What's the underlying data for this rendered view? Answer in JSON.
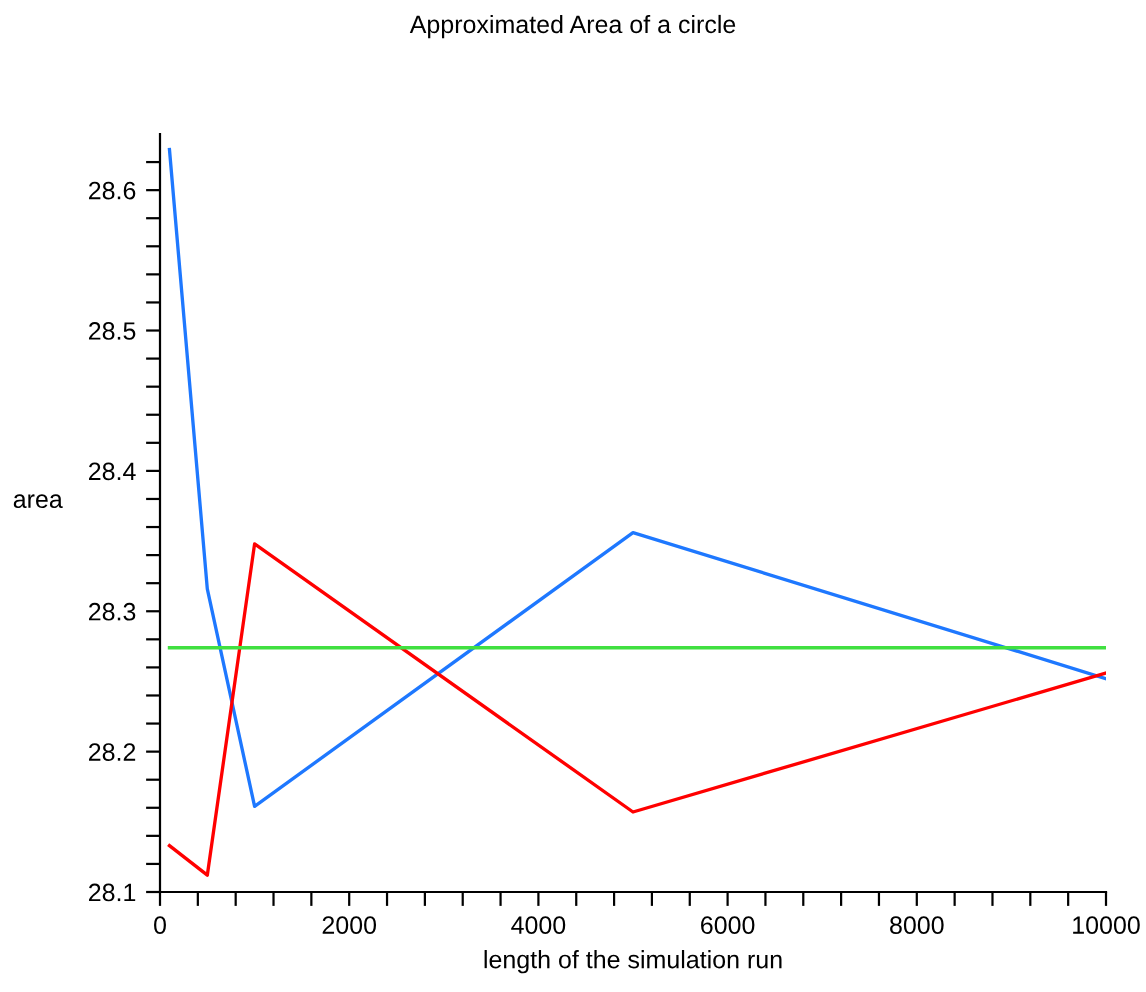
{
  "chart_data": {
    "type": "line",
    "title": "Approximated Area of a circle",
    "xlabel": "length of the simulation run",
    "ylabel": "area",
    "series": [
      {
        "color": "#1e78ff",
        "x": [
          100,
          500,
          1000,
          5000,
          10000
        ],
        "values": [
          28.629,
          28.316,
          28.161,
          28.356,
          28.252
        ]
      },
      {
        "color": "#ff0000",
        "x": [
          100,
          500,
          1000,
          5000,
          10000
        ],
        "values": [
          28.133,
          28.112,
          28.348,
          28.157,
          28.256
        ]
      },
      {
        "color": "#40e040",
        "x": [
          100,
          10000
        ],
        "values": [
          28.274,
          28.274
        ]
      }
    ],
    "xlim": [
      0,
      10000
    ],
    "ylim": [
      28.1,
      28.64
    ],
    "xticks": [
      0,
      {
        "value": 400,
        "label": null
      },
      {
        "value": 800,
        "label": null
      },
      {
        "value": 1200,
        "label": null
      },
      {
        "value": 1600,
        "label": null
      },
      2000,
      {
        "value": 2400,
        "label": null
      },
      {
        "value": 2800,
        "label": null
      },
      {
        "value": 3200,
        "label": null
      },
      {
        "value": 3600,
        "label": null
      },
      4000,
      {
        "value": 4400,
        "label": null
      },
      {
        "value": 4800,
        "label": null
      },
      {
        "value": 5200,
        "label": null
      },
      {
        "value": 5600,
        "label": null
      },
      6000,
      {
        "value": 6400,
        "label": null
      },
      {
        "value": 6800,
        "label": null
      },
      {
        "value": 7200,
        "label": null
      },
      {
        "value": 7600,
        "label": null
      },
      8000,
      {
        "value": 8400,
        "label": null
      },
      {
        "value": 8800,
        "label": null
      },
      {
        "value": 9200,
        "label": null
      },
      {
        "value": 9600,
        "label": null
      },
      10000
    ],
    "yticks": [
      28.1,
      {
        "value": 28.12,
        "label": null
      },
      {
        "value": 28.14,
        "label": null
      },
      {
        "value": 28.16,
        "label": null
      },
      {
        "value": 28.18,
        "label": null
      },
      28.2,
      {
        "value": 28.22,
        "label": null
      },
      {
        "value": 28.24,
        "label": null
      },
      {
        "value": 28.26,
        "label": null
      },
      {
        "value": 28.28,
        "label": null
      },
      28.3,
      {
        "value": 28.32,
        "label": null
      },
      {
        "value": 28.34,
        "label": null
      },
      {
        "value": 28.36,
        "label": null
      },
      {
        "value": 28.38,
        "label": null
      },
      28.4,
      {
        "value": 28.42,
        "label": null
      },
      {
        "value": 28.44,
        "label": null
      },
      {
        "value": 28.46,
        "label": null
      },
      {
        "value": 28.48,
        "label": null
      },
      28.5,
      {
        "value": 28.52,
        "label": null
      },
      {
        "value": 28.54,
        "label": null
      },
      {
        "value": 28.56,
        "label": null
      },
      {
        "value": 28.58,
        "label": null
      },
      28.6,
      {
        "value": 28.62,
        "label": null
      }
    ],
    "grid": false,
    "legend": false,
    "marker": "none",
    "line_style": "solid"
  }
}
